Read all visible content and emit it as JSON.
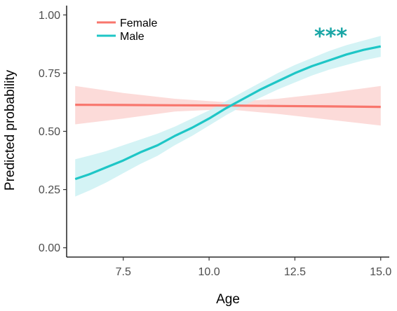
{
  "chart_data": {
    "type": "line",
    "xlabel": "Age",
    "ylabel": "Predicted probability",
    "xlim": [
      5.85,
      15.25
    ],
    "ylim": [
      -0.04,
      1.04
    ],
    "x_ticks": [
      "7.5",
      "10.0",
      "12.5",
      "15.0"
    ],
    "y_ticks": [
      "0.00",
      "0.25",
      "0.50",
      "0.75",
      "1.00"
    ],
    "grid": false,
    "legend_position": "top-left",
    "annotation": {
      "text": "***",
      "color": "#1aa6a6",
      "near_series": "Male"
    },
    "series": [
      {
        "name": "Female",
        "color": "#f8766d",
        "band_color": "#fbd5d2",
        "x": [
          6.1,
          7.5,
          9.0,
          10.5,
          12.0,
          13.5,
          15.0
        ],
        "values": [
          0.614,
          0.613,
          0.612,
          0.611,
          0.609,
          0.607,
          0.605
        ],
        "lower": [
          0.53,
          0.555,
          0.585,
          0.595,
          0.575,
          0.55,
          0.525
        ],
        "upper": [
          0.695,
          0.665,
          0.64,
          0.625,
          0.64,
          0.665,
          0.695
        ]
      },
      {
        "name": "Male",
        "color": "#1ec6c6",
        "band_color": "#cdf1f3",
        "x": [
          6.1,
          6.5,
          7.0,
          7.5,
          8.0,
          8.5,
          9.0,
          9.5,
          10.0,
          10.5,
          11.0,
          11.5,
          12.0,
          12.5,
          13.0,
          13.5,
          14.0,
          14.5,
          15.0
        ],
        "values": [
          0.295,
          0.315,
          0.345,
          0.375,
          0.41,
          0.44,
          0.48,
          0.515,
          0.555,
          0.6,
          0.64,
          0.68,
          0.715,
          0.75,
          0.78,
          0.805,
          0.83,
          0.85,
          0.865
        ],
        "lower": [
          0.22,
          0.245,
          0.28,
          0.32,
          0.36,
          0.395,
          0.44,
          0.48,
          0.525,
          0.57,
          0.61,
          0.645,
          0.68,
          0.71,
          0.74,
          0.765,
          0.785,
          0.805,
          0.82
        ],
        "upper": [
          0.38,
          0.395,
          0.415,
          0.44,
          0.465,
          0.49,
          0.52,
          0.555,
          0.59,
          0.63,
          0.67,
          0.71,
          0.75,
          0.785,
          0.815,
          0.845,
          0.87,
          0.89,
          0.91
        ]
      }
    ]
  }
}
